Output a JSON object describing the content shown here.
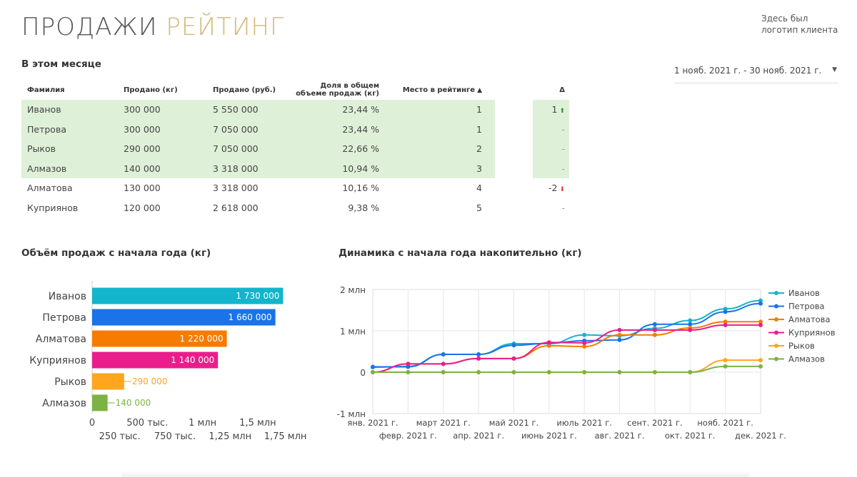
{
  "header": {
    "title_main": "ПРОДАЖИ",
    "title_accent": "РЕЙТИНГ",
    "logo_line1": "Здесь был",
    "logo_line2": "логотип клиента"
  },
  "date_range": {
    "value": "1 нояб. 2021 г. - 30 нояб. 2021 г."
  },
  "table": {
    "section_title": "В этом месяце",
    "columns": [
      "Фамилия",
      "Продано (кг)",
      "Продано (руб.)",
      "Доля в общем",
      "объеме продаж (кг)",
      "Место в рейтинге",
      "Δ"
    ],
    "sort_indicator": "▲",
    "rows": [
      {
        "name": "Иванов",
        "kg": "300 000",
        "rub": "5 550 000",
        "share": "23,44 %",
        "place": "1",
        "delta": "1",
        "dir": "up",
        "hl": true
      },
      {
        "name": "Петрова",
        "kg": "300 000",
        "rub": "7 050 000",
        "share": "23,44 %",
        "place": "1",
        "delta": "-",
        "dir": "none",
        "hl": true
      },
      {
        "name": "Рыков",
        "kg": "290 000",
        "rub": "7 050 000",
        "share": "22,66 %",
        "place": "2",
        "delta": "-",
        "dir": "none",
        "hl": true
      },
      {
        "name": "Алмазов",
        "kg": "140 000",
        "rub": "3 318 000",
        "share": "10,94 %",
        "place": "3",
        "delta": "-",
        "dir": "none",
        "hl": true
      },
      {
        "name": "Алматова",
        "kg": "130 000",
        "rub": "3 318 000",
        "share": "10,16 %",
        "place": "4",
        "delta": "-2",
        "dir": "down",
        "hl": false
      },
      {
        "name": "Куприянов",
        "kg": "120 000",
        "rub": "2 618 000",
        "share": "9,38 %",
        "place": "5",
        "delta": "-",
        "dir": "none",
        "hl": false
      }
    ]
  },
  "chart_data": [
    {
      "type": "bar",
      "title": "Объём продаж с начала года (кг)",
      "orientation": "horizontal",
      "categories": [
        "Иванов",
        "Петрова",
        "Алматова",
        "Куприянов",
        "Рыков",
        "Алмазов"
      ],
      "values": [
        1730000,
        1660000,
        1220000,
        1140000,
        290000,
        140000
      ],
      "value_labels": [
        "1 730 000",
        "1 660 000",
        "1 220 000",
        "1 140 000",
        "290 000",
        "140 000"
      ],
      "colors": [
        "#12b5cb",
        "#1a73e8",
        "#f57c00",
        "#e91e8c",
        "#ffa51e",
        "#7cb342"
      ],
      "xlim": [
        0,
        1850000
      ],
      "xticks": [
        0,
        250000,
        500000,
        750000,
        1000000,
        1250000,
        1500000,
        1750000
      ],
      "xtick_labels": [
        "0",
        "250 тыс.",
        "500 тыс.",
        "750 тыс.",
        "1 млн",
        "1,25 млн",
        "1,5 млн",
        "1,75 млн"
      ]
    },
    {
      "type": "line",
      "title": "Динамика с начала года накопительно (кг)",
      "x": [
        "янв. 2021 г.",
        "февр. 2021 г.",
        "март 2021 г.",
        "апр. 2021 г.",
        "май 2021 г.",
        "июнь 2021 г.",
        "июль 2021 г.",
        "авг. 2021 г.",
        "сент. 2021 г.",
        "окт. 2021 г.",
        "нояб. 2021 г.",
        "дек. 2021 г."
      ],
      "ylim": [
        -1000000,
        2000000
      ],
      "yticks": [
        -1000000,
        0,
        1000000,
        2000000
      ],
      "ytick_labels": [
        "-1 млн",
        "0",
        "1 млн",
        "2 млн"
      ],
      "legend_position": "right",
      "series": [
        {
          "name": "Иванов",
          "color": "#12b5cb",
          "values": [
            120000,
            140000,
            430000,
            430000,
            690000,
            690000,
            900000,
            880000,
            1060000,
            1250000,
            1530000,
            1730000
          ]
        },
        {
          "name": "Петрова",
          "color": "#1a73e8",
          "values": [
            130000,
            130000,
            430000,
            430000,
            650000,
            700000,
            760000,
            780000,
            1160000,
            1160000,
            1460000,
            1660000
          ]
        },
        {
          "name": "Алматова",
          "color": "#f57c00",
          "values": [
            0,
            200000,
            200000,
            330000,
            330000,
            640000,
            620000,
            900000,
            900000,
            1070000,
            1220000,
            1220000
          ]
        },
        {
          "name": "Куприянов",
          "color": "#e91e8c",
          "values": [
            0,
            200000,
            200000,
            330000,
            330000,
            720000,
            710000,
            1020000,
            1020000,
            1020000,
            1140000,
            1140000
          ]
        },
        {
          "name": "Рыков",
          "color": "#ffa51e",
          "values": [
            0,
            0,
            0,
            0,
            0,
            0,
            0,
            0,
            0,
            0,
            290000,
            290000
          ]
        },
        {
          "name": "Алмазов",
          "color": "#7cb342",
          "values": [
            0,
            0,
            0,
            0,
            0,
            0,
            0,
            0,
            0,
            0,
            140000,
            140000
          ]
        }
      ]
    }
  ]
}
